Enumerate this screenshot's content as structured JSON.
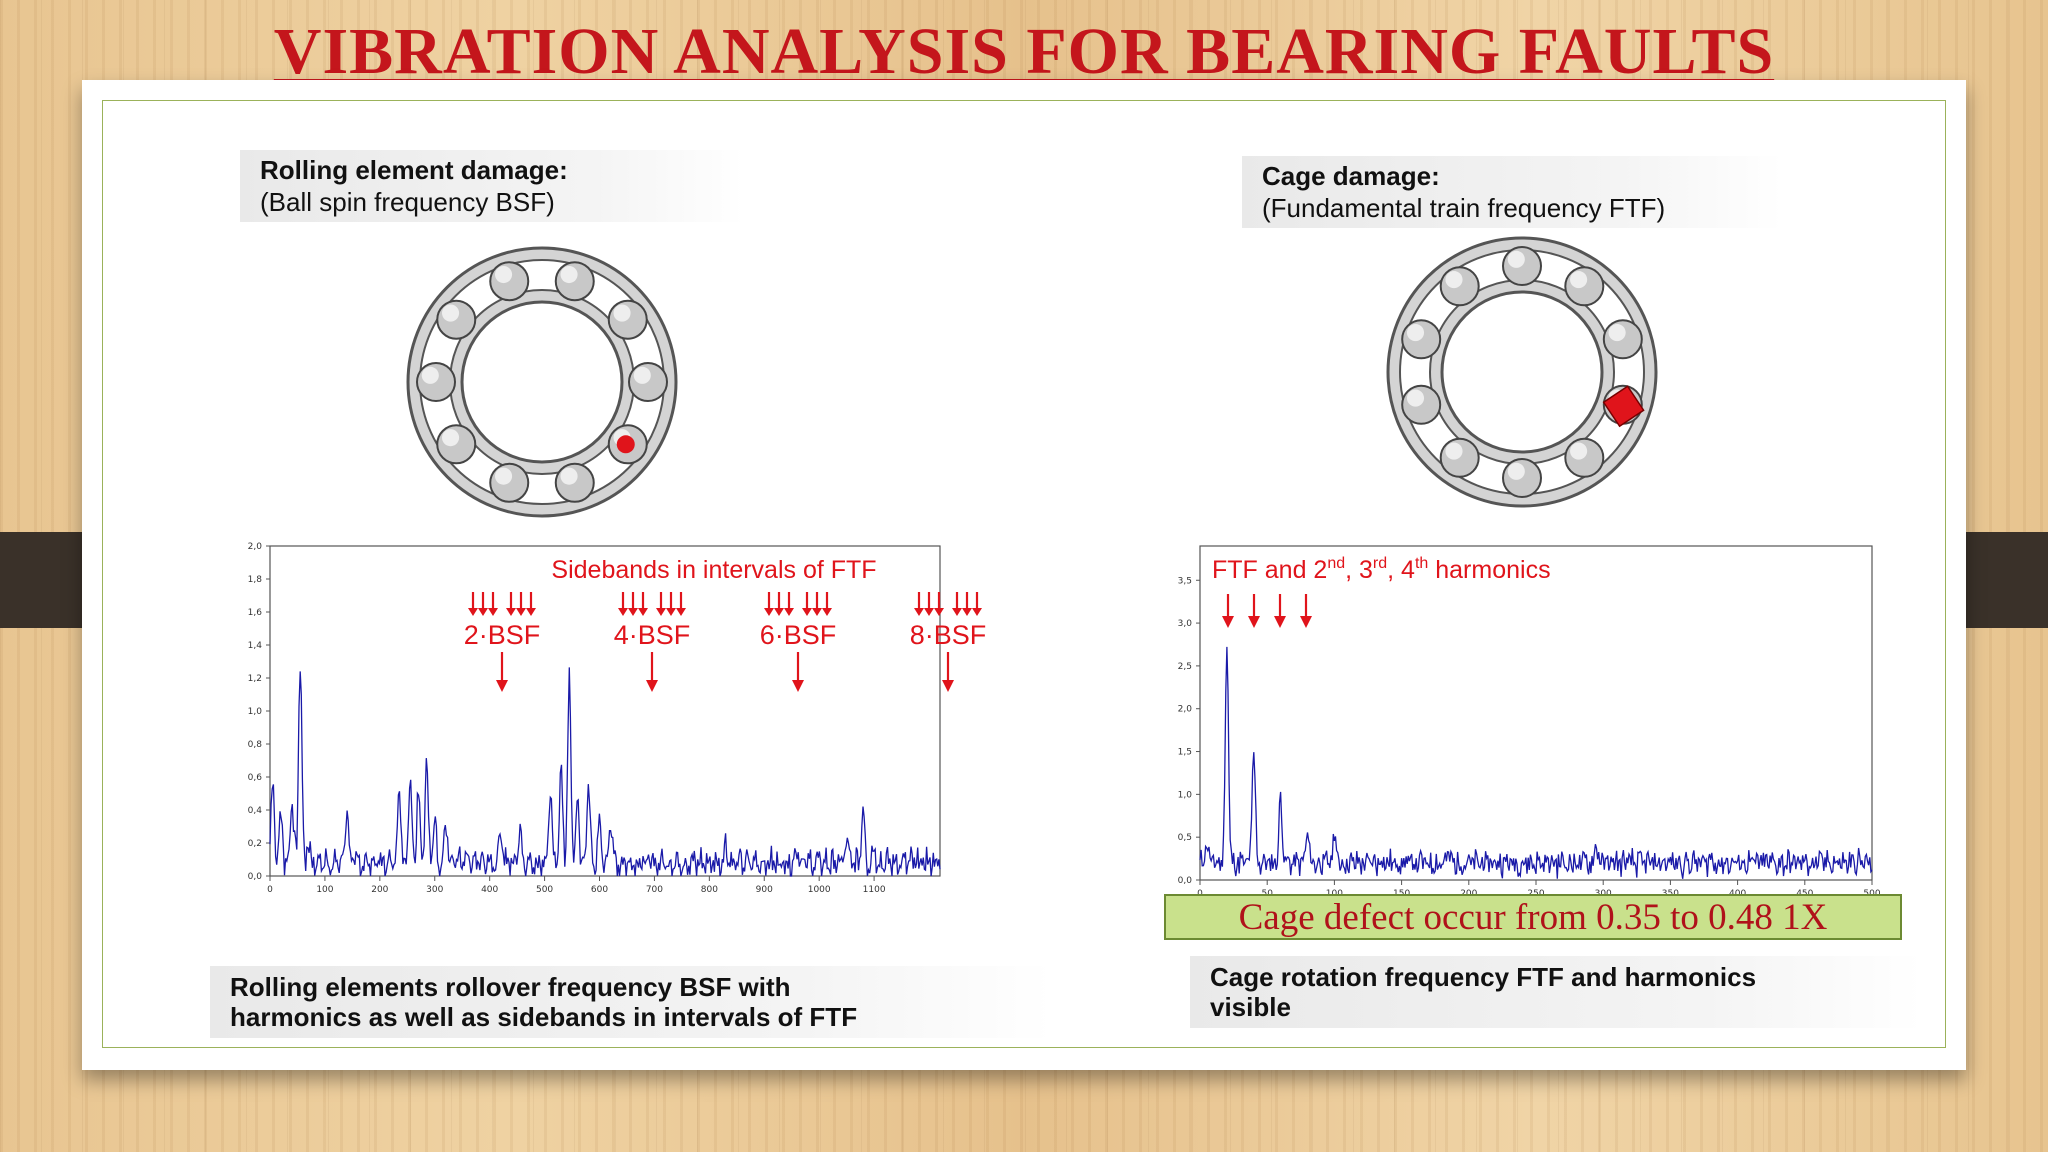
{
  "title": "VIBRATION ANALYSIS FOR BEARING FAULTS",
  "left": {
    "header_line1": "Rolling element damage:",
    "header_line2": "(Ball spin frequency BSF)",
    "chart_annotation": "Sidebands in intervals of FTF",
    "harmonic_labels": [
      "2·BSF",
      "4·BSF",
      "6·BSF",
      "8·BSF"
    ],
    "caption_line1": "Rolling elements rollover frequency BSF with",
    "caption_line2": "harmonics as well as sidebands in intervals of FTF"
  },
  "right": {
    "header_line1": "Cage damage:",
    "header_line2": "(Fundamental train frequency FTF)",
    "chart_annotation_base": "FTF and 2",
    "chart_annotation_sup1": "nd",
    "chart_annotation_mid1": ", 3",
    "chart_annotation_sup2": "rd",
    "chart_annotation_mid2": ", 4",
    "chart_annotation_sup3": "th",
    "chart_annotation_end": " harmonics",
    "defect_note": "Cage defect occur from 0.35 to 0.48 1X",
    "caption_line1": "Cage rotation frequency FTF and harmonics",
    "caption_line2": "visible"
  },
  "colors": {
    "title": "#c4161c",
    "signal": "#1a1aa8",
    "fault": "#e0141b",
    "note_bg": "#c9e18c"
  },
  "chart_data": [
    {
      "type": "line",
      "x_ticks": [
        "0",
        "100",
        "200",
        "300",
        "400",
        "500",
        "600",
        "700",
        "800",
        "900",
        "1000",
        "1100"
      ],
      "y_ticks": [
        "0,0",
        "0,2",
        "0,4",
        "0,6",
        "0,8",
        "1,0",
        "1,2",
        "1,4",
        "1,6",
        "1,8",
        "2,0"
      ],
      "xlim": [
        0,
        1220
      ],
      "ylim": [
        0,
        2.0
      ],
      "peaks": [
        [
          5,
          0.58
        ],
        [
          20,
          0.38
        ],
        [
          40,
          0.48
        ],
        [
          55,
          1.32
        ],
        [
          70,
          0.2
        ],
        [
          140,
          0.42
        ],
        [
          235,
          0.55
        ],
        [
          255,
          0.62
        ],
        [
          270,
          0.55
        ],
        [
          285,
          0.68
        ],
        [
          300,
          0.35
        ],
        [
          320,
          0.32
        ],
        [
          420,
          0.3
        ],
        [
          455,
          0.3
        ],
        [
          510,
          0.5
        ],
        [
          530,
          0.65
        ],
        [
          545,
          1.18
        ],
        [
          560,
          0.45
        ],
        [
          580,
          0.55
        ],
        [
          600,
          0.3
        ],
        [
          620,
          0.35
        ],
        [
          830,
          0.2
        ],
        [
          960,
          0.18
        ],
        [
          1050,
          0.22
        ],
        [
          1080,
          0.42
        ],
        [
          1100,
          0.18
        ]
      ],
      "base": 0.08
    },
    {
      "type": "line",
      "x_ticks": [
        "0",
        "50",
        "100",
        "150",
        "200",
        "250",
        "300",
        "350",
        "400",
        "450",
        "500"
      ],
      "y_ticks": [
        "0,0",
        "0,5",
        "1,0",
        "1,5",
        "2,0",
        "2,5",
        "3,0",
        "3,5"
      ],
      "xlim": [
        0,
        500
      ],
      "ylim": [
        0,
        3.9
      ],
      "peaks": [
        [
          5,
          0.45
        ],
        [
          20,
          2.75
        ],
        [
          40,
          1.5
        ],
        [
          60,
          0.95
        ],
        [
          80,
          0.55
        ],
        [
          100,
          0.55
        ],
        [
          135,
          0.25
        ],
        [
          185,
          0.3
        ],
        [
          295,
          0.42
        ],
        [
          380,
          0.25
        ],
        [
          470,
          0.22
        ]
      ],
      "base": 0.2
    }
  ]
}
